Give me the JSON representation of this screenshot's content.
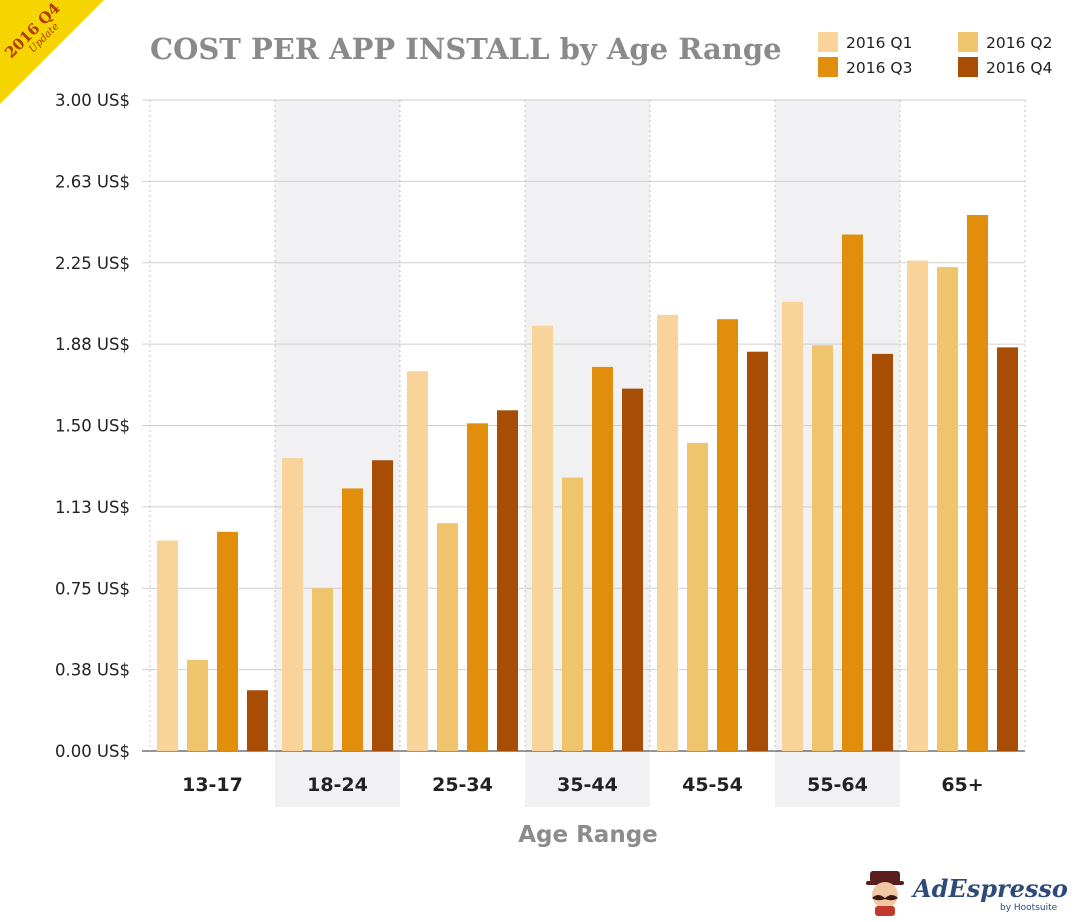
{
  "badge": {
    "text": "2016 Q4",
    "subtext": "Update"
  },
  "logo": {
    "name": "AdEspresso",
    "sub": "by Hootsuite"
  },
  "colors": {
    "q1": "#f9d49a",
    "q2": "#f0c46c",
    "q3": "#e08e0b",
    "q4": "#a84d06",
    "band": "#f1f1f3",
    "badge": "#f5d400"
  },
  "chart_data": {
    "type": "bar",
    "title": "COST PER APP INSTALL by Age Range",
    "xlabel": "Age Range",
    "ylabel": "",
    "ylim": [
      0,
      3.0
    ],
    "yticks": [
      "0.00 US$",
      "0.38 US$",
      "0.75 US$",
      "1.13 US$",
      "1.50 US$",
      "1.88 US$",
      "2.25 US$",
      "2.63 US$",
      "3.00 US$"
    ],
    "categories": [
      "13-17",
      "18-24",
      "25-34",
      "35-44",
      "45-54",
      "55-64",
      "65+"
    ],
    "series": [
      {
        "name": "2016 Q1",
        "values": [
          0.97,
          1.35,
          1.75,
          1.96,
          2.01,
          2.07,
          2.26
        ]
      },
      {
        "name": "2016 Q2",
        "values": [
          0.42,
          0.75,
          1.05,
          1.26,
          1.42,
          1.87,
          2.23
        ]
      },
      {
        "name": "2016 Q3",
        "values": [
          1.01,
          1.21,
          1.51,
          1.77,
          1.99,
          2.38,
          2.47
        ]
      },
      {
        "name": "2016 Q4",
        "values": [
          0.28,
          1.34,
          1.57,
          1.67,
          1.84,
          1.83,
          1.86
        ]
      }
    ],
    "grid": true,
    "legend": "top-right"
  }
}
